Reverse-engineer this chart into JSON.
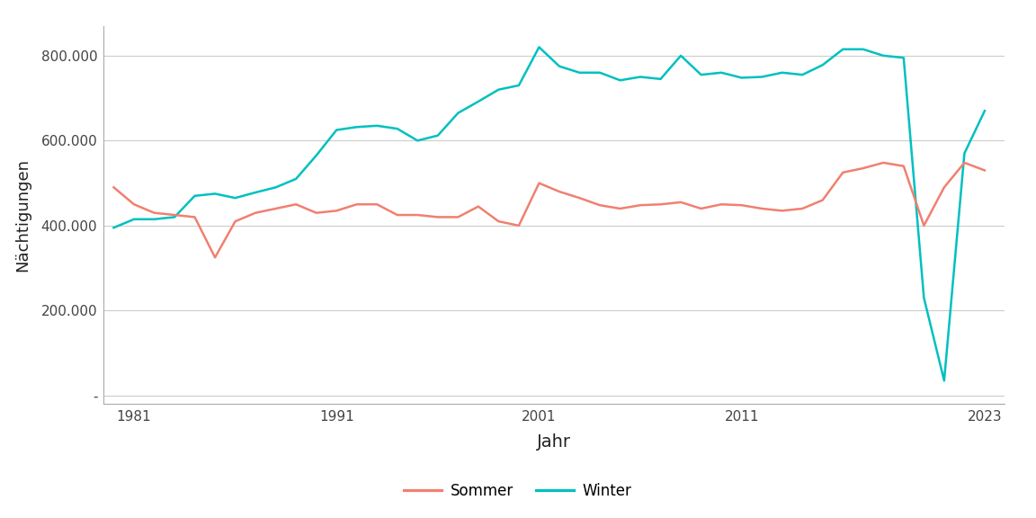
{
  "title": "",
  "xlabel": "Jahr",
  "ylabel": "Nächtigungen",
  "panel_background": "#ffffff",
  "outer_background": "#ffffff",
  "sommer_color": "#f08070",
  "winter_color": "#00c0c0",
  "line_width": 1.8,
  "legend_labels": [
    "Sommer",
    "Winter"
  ],
  "years": [
    1980,
    1981,
    1982,
    1983,
    1984,
    1985,
    1986,
    1987,
    1988,
    1989,
    1990,
    1991,
    1992,
    1993,
    1994,
    1995,
    1996,
    1997,
    1998,
    1999,
    2000,
    2001,
    2002,
    2003,
    2004,
    2005,
    2006,
    2007,
    2008,
    2009,
    2010,
    2011,
    2012,
    2013,
    2014,
    2015,
    2016,
    2017,
    2018,
    2019,
    2020,
    2021,
    2022,
    2023
  ],
  "sommer": [
    490000,
    450000,
    430000,
    425000,
    420000,
    325000,
    410000,
    430000,
    440000,
    450000,
    430000,
    435000,
    450000,
    450000,
    425000,
    425000,
    420000,
    420000,
    445000,
    410000,
    400000,
    500000,
    480000,
    465000,
    448000,
    440000,
    448000,
    450000,
    455000,
    440000,
    450000,
    448000,
    440000,
    435000,
    440000,
    460000,
    525000,
    535000,
    548000,
    540000,
    400000,
    490000,
    548000,
    530000
  ],
  "winter": [
    395000,
    415000,
    415000,
    420000,
    470000,
    475000,
    465000,
    478000,
    490000,
    510000,
    565000,
    625000,
    632000,
    635000,
    628000,
    600000,
    612000,
    665000,
    692000,
    720000,
    730000,
    820000,
    775000,
    760000,
    760000,
    742000,
    750000,
    745000,
    800000,
    755000,
    760000,
    748000,
    750000,
    760000,
    755000,
    778000,
    815000,
    815000,
    800000,
    795000,
    230000,
    35000,
    570000,
    670000
  ],
  "ylim": [
    -20000,
    870000
  ],
  "yticks": [
    0,
    200000,
    400000,
    600000,
    800000
  ],
  "ytick_labels": [
    "-",
    "200.000",
    "400.000",
    "600.000",
    "800.000"
  ],
  "xticks": [
    1981,
    1991,
    2001,
    2011,
    2023
  ],
  "xlim": [
    1979.5,
    2024
  ]
}
